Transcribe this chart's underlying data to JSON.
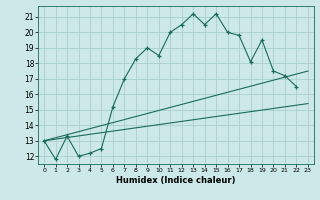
{
  "xlabel": "Humidex (Indice chaleur)",
  "bg_color": "#cce8e8",
  "line_color": "#1a6b5a",
  "grid_color": "#aad0d0",
  "xlim": [
    -0.5,
    23.5
  ],
  "ylim": [
    11.5,
    21.7
  ],
  "xticks": [
    0,
    1,
    2,
    3,
    4,
    5,
    6,
    7,
    8,
    9,
    10,
    11,
    12,
    13,
    14,
    15,
    16,
    17,
    18,
    19,
    20,
    21,
    22,
    23
  ],
  "yticks": [
    12,
    13,
    14,
    15,
    16,
    17,
    18,
    19,
    20,
    21
  ],
  "main_series_x": [
    0,
    1,
    2,
    3,
    4,
    5,
    6,
    7,
    8,
    9,
    10,
    11,
    12,
    13,
    14,
    15,
    16,
    17,
    18,
    19,
    20,
    21,
    22
  ],
  "main_series_y": [
    13.0,
    11.8,
    13.3,
    12.0,
    12.2,
    12.5,
    15.2,
    17.0,
    18.3,
    19.0,
    18.5,
    20.0,
    20.5,
    21.2,
    20.5,
    21.2,
    20.0,
    19.8,
    18.1,
    19.5,
    17.5,
    17.2,
    16.5
  ],
  "line2_x": [
    0,
    23
  ],
  "line2_y": [
    13.0,
    15.4
  ],
  "line3_x": [
    0,
    23
  ],
  "line3_y": [
    13.0,
    17.5
  ]
}
